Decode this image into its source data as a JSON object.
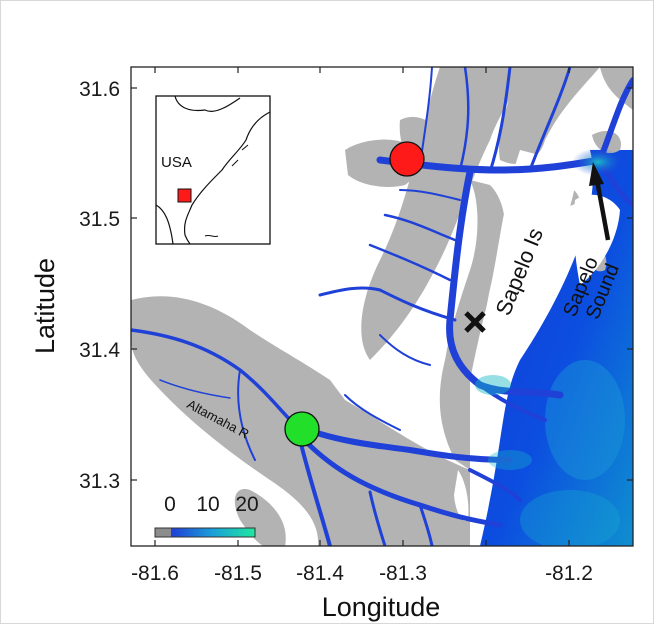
{
  "map": {
    "xlabel": "Longitude",
    "ylabel": "Latitude",
    "x_ticks": [
      "-81.6",
      "-81.5",
      "-81.4",
      "-81.3",
      "-81.2"
    ],
    "y_ticks": [
      "31.6",
      "31.5",
      "31.4",
      "31.3"
    ],
    "lon_range": [
      -81.62,
      -81.15
    ],
    "lat_range": [
      31.25,
      31.62
    ],
    "inset_label": "USA",
    "annotations": {
      "island": "Sapelo Is",
      "sound_line1": "Sapelo",
      "sound_line2": "Sound",
      "river": "Altamaha R"
    },
    "colorbar": {
      "labels": [
        "0",
        "10",
        "20"
      ],
      "colors": [
        "#8c8c8c",
        "#1f3fd6",
        "#1aa0d8",
        "#20e8a0"
      ]
    },
    "markers": {
      "red_site": {
        "lon": -81.36,
        "lat": 31.543,
        "color": "#ff1a1a"
      },
      "green_site": {
        "lon": -81.45,
        "lat": 31.338,
        "color": "#22e02a"
      },
      "x_marker": {
        "lon": -81.296,
        "lat": 31.42
      }
    },
    "colors": {
      "marsh": "#b3b3b3",
      "channel": "#1f41d8",
      "ocean_deep": "#0a3fe0",
      "ocean_shallow": "#0fb8c8",
      "inset_box": "#ff1a1a"
    }
  }
}
